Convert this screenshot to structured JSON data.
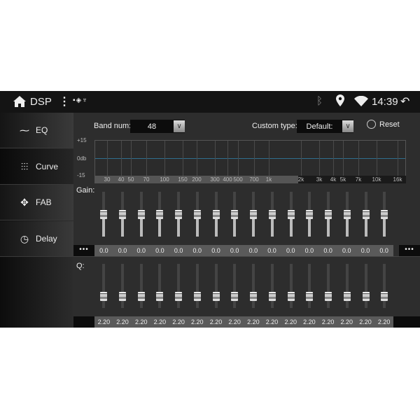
{
  "status_bar": {
    "title": "DSP",
    "time": "14:39",
    "icons": [
      "home-icon",
      "more-vert-icon",
      "image-icon",
      "shield-icon",
      "usb-icon",
      "bluetooth-icon",
      "location-icon",
      "wifi-icon",
      "back-icon"
    ]
  },
  "sidebar": {
    "items": [
      {
        "label": "EQ",
        "icon": "waveform-icon",
        "selected": false
      },
      {
        "label": "Curve",
        "icon": "sliders-icon",
        "selected": true
      },
      {
        "label": "FAB",
        "icon": "fader-arrows-icon",
        "selected": false
      },
      {
        "label": "Delay",
        "icon": "clock-icon",
        "selected": false
      }
    ]
  },
  "controls": {
    "band_num_label": "Band num:",
    "band_num_value": "48",
    "custom_type_label": "Custom type:",
    "custom_type_value": "Default:",
    "reset_label": "Reset"
  },
  "graph": {
    "y_labels": [
      "+15",
      "0db",
      "-15"
    ],
    "freq_labels": [
      "30",
      "40",
      "50",
      "70",
      "100",
      "150",
      "200",
      "300",
      "400",
      "500",
      "700",
      "1k",
      "2k",
      "3k",
      "4k",
      "5k",
      "7k",
      "10k",
      "16k"
    ]
  },
  "gain": {
    "label": "Gain:",
    "range": [
      -15,
      15
    ],
    "values": [
      "0.0",
      "0.0",
      "0.0",
      "0.0",
      "0.0",
      "0.0",
      "0.0",
      "0.0",
      "0.0",
      "0.0",
      "0.0",
      "0.0",
      "0.0",
      "0.0",
      "0.0",
      "0.0"
    ],
    "more": "•••"
  },
  "q": {
    "label": "Q:",
    "values": [
      "2.20",
      "2.20",
      "2.20",
      "2.20",
      "2.20",
      "2.20",
      "2.20",
      "2.20",
      "2.20",
      "2.20",
      "2.20",
      "2.20",
      "2.20",
      "2.20",
      "2.20",
      "2.20"
    ],
    "slider_level": 0.2
  }
}
